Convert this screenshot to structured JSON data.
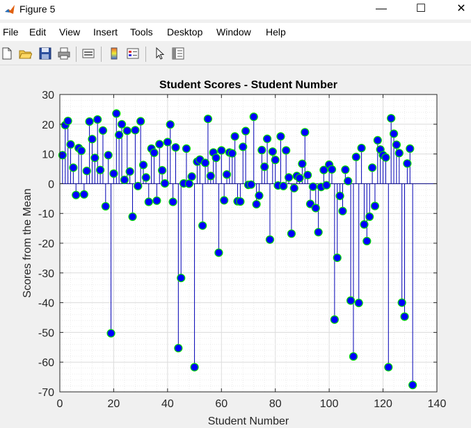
{
  "window": {
    "title": "Figure 5",
    "minimize_glyph": "—",
    "maximize_glyph": "☐",
    "close_glyph": "✕"
  },
  "menu": [
    "File",
    "Edit",
    "View",
    "Insert",
    "Tools",
    "Desktop",
    "Window",
    "Help"
  ],
  "toolbar_icons": [
    "new-figure-icon",
    "open-file-icon",
    "save-icon",
    "print-icon",
    "link-plot-icon",
    "colorbar-icon",
    "legend-icon",
    "pointer-icon",
    "property-editor-icon"
  ],
  "colors": {
    "stem": "#0000b4",
    "marker_fill": "#0000ff",
    "marker_edge": "#00dd00",
    "baseline": "#000080"
  },
  "chart_data": {
    "type": "stem",
    "title": "Student Scores - Student Number",
    "xlabel": "Student Number",
    "ylabel": "Scores from the Mean",
    "xlim": [
      0,
      140
    ],
    "ylim": [
      -70,
      30
    ],
    "xticks": [
      0,
      20,
      40,
      60,
      80,
      100,
      120,
      140
    ],
    "yticks": [
      30,
      20,
      10,
      0,
      -10,
      -20,
      -30,
      -40,
      -50,
      -60,
      -70
    ],
    "grid": "minor",
    "x": [
      1,
      2,
      3,
      4,
      5,
      6,
      7,
      8,
      9,
      10,
      11,
      12,
      13,
      14,
      15,
      16,
      17,
      18,
      19,
      20,
      21,
      22,
      23,
      24,
      25,
      26,
      27,
      28,
      29,
      30,
      31,
      32,
      33,
      34,
      35,
      36,
      37,
      38,
      39,
      40,
      41,
      42,
      43,
      44,
      45,
      46,
      47,
      48,
      49,
      50,
      51,
      52,
      53,
      54,
      55,
      56,
      57,
      58,
      59,
      60,
      61,
      62,
      63,
      64,
      65,
      66,
      67,
      68,
      69,
      70,
      71,
      72,
      73,
      74,
      75,
      76,
      77,
      78,
      79,
      80,
      81,
      82,
      83,
      84,
      85,
      86,
      87,
      88,
      89,
      90,
      91,
      92,
      93,
      94,
      95,
      96,
      97,
      98,
      99,
      100,
      101,
      102,
      103,
      104,
      105,
      106,
      107,
      108,
      109,
      110,
      111,
      112,
      113,
      114,
      115,
      116,
      117,
      118,
      119,
      120,
      121,
      122,
      123,
      124,
      125,
      126,
      127,
      128,
      129,
      130,
      131
    ],
    "y": [
      9.6,
      19.7,
      21.1,
      13.2,
      5.4,
      -3.8,
      12,
      11.1,
      -3.6,
      4.3,
      20.9,
      15,
      8.7,
      21.6,
      4.6,
      17.9,
      -7.6,
      9.6,
      -50.3,
      3.4,
      23.6,
      16.4,
      20,
      1.3,
      17.8,
      4.1,
      -11.1,
      18,
      -0.8,
      21,
      6.3,
      2.1,
      -6.1,
      11.8,
      10.4,
      -5.7,
      13.3,
      4.5,
      0.1,
      14,
      19.9,
      -6.1,
      12.2,
      -55.3,
      -31.7,
      0.1,
      11.8,
      0,
      2.4,
      -61.7,
      7.4,
      8.1,
      -14.1,
      7,
      21.8,
      2.6,
      10.5,
      8.7,
      -23.2,
      11.2,
      -5.6,
      3.1,
      10.5,
      10.2,
      15.9,
      -5.9,
      -6,
      12.4,
      17.7,
      -0.4,
      -0.3,
      22.5,
      -6.9,
      -4,
      11.3,
      5.7,
      15.1,
      -18.8,
      10.8,
      8,
      -0.6,
      15.9,
      -0.8,
      11.2,
      2.1,
      -16.8,
      -1.5,
      2.6,
      1.9,
      6.7,
      17.3,
      2.9,
      -6.8,
      -1,
      -8.2,
      -16.3,
      -1.1,
      4.6,
      -0.5,
      6.4,
      4.8,
      -45.7,
      -24.9,
      -4.1,
      -9.2,
      4.7,
      0.9,
      -39.3,
      -58.1,
      9,
      -40.1,
      12,
      -13.7,
      -19.3,
      -11.1,
      5.4,
      -7.5,
      14.6,
      11.5,
      9.6,
      8.8,
      -61.7,
      22,
      16.8,
      13.1,
      10.3,
      -40,
      -44.7,
      6.8,
      11.8,
      -67.7
    ]
  }
}
